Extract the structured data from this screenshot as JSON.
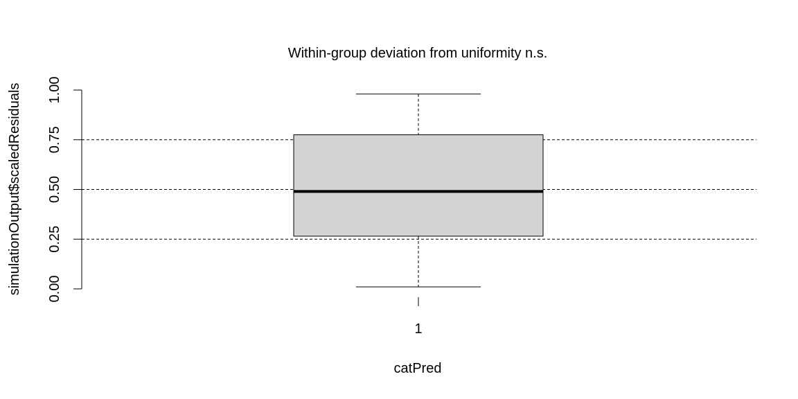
{
  "chart_data": {
    "type": "box",
    "title": "Within-group deviation from uniformity n.s.",
    "xlabel": "catPred",
    "ylabel": "simulationOutput$scaledResiduals",
    "categories": [
      "1"
    ],
    "ylim": [
      0,
      1
    ],
    "yticks": [
      0,
      0.25,
      0.5,
      0.75,
      1
    ],
    "ytick_labels": [
      "0.00",
      "0.25",
      "0.50",
      "0.75",
      "1.00"
    ],
    "reference_lines": [
      0.25,
      0.5,
      0.75
    ],
    "boxes": [
      {
        "category": "1",
        "min": 0.01,
        "q1": 0.265,
        "median": 0.49,
        "q3": 0.775,
        "max": 0.98
      }
    ],
    "colors": {
      "box_fill": "#d3d3d3",
      "stroke": "#000000"
    }
  }
}
